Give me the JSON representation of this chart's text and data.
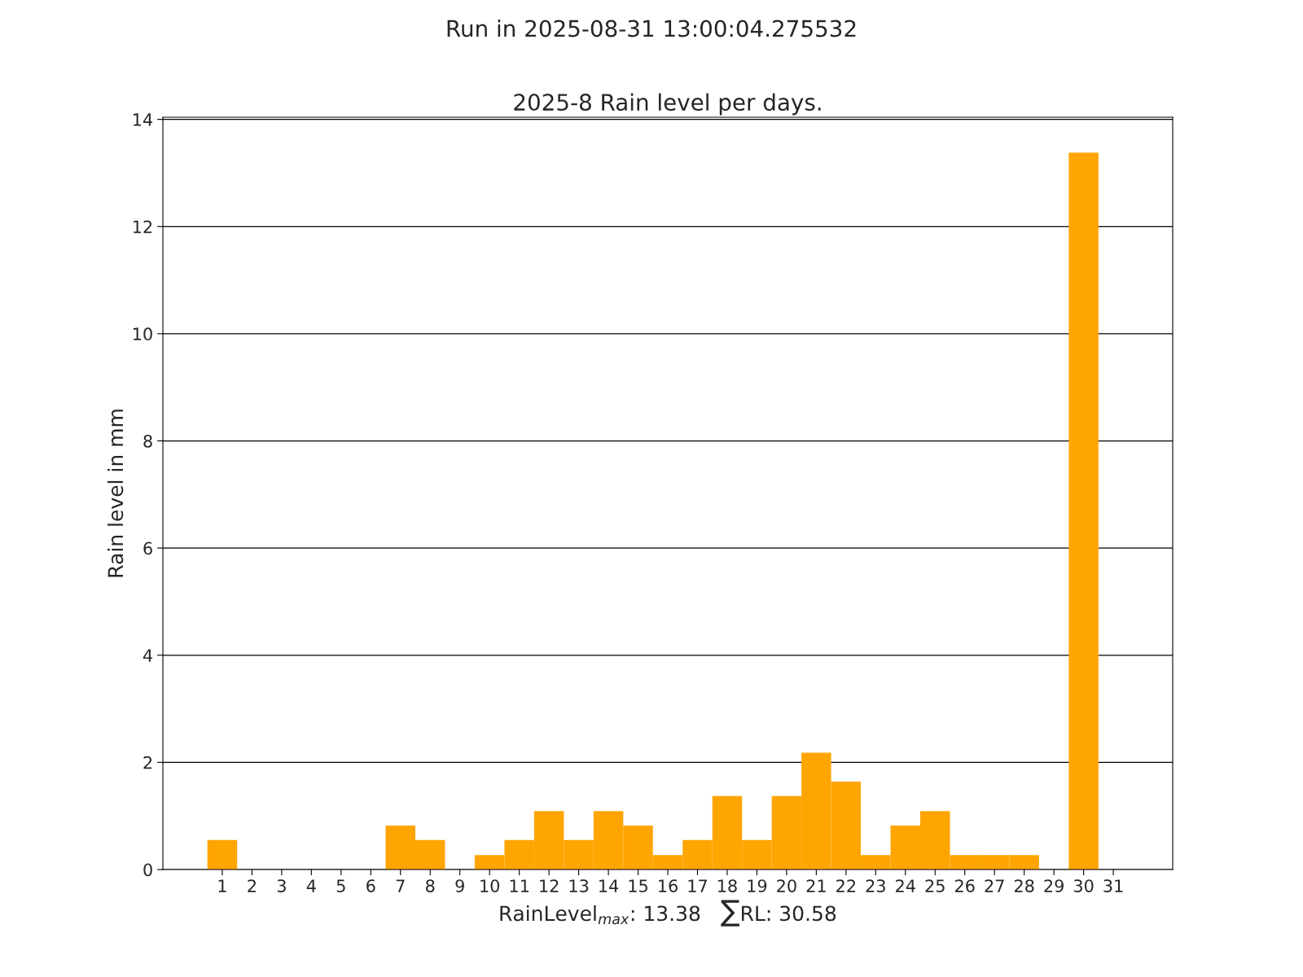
{
  "chart_data": {
    "type": "bar",
    "title": "Run in 2025-08-31 13:00:04.275532",
    "subtitle": "2025-8 Rain level per days.",
    "xlabel": "RainLevel$_{max}$: 13.38   ∑RL: 30.58",
    "ylabel": "Rain level in mm",
    "categories": [
      "1",
      "2",
      "3",
      "4",
      "5",
      "6",
      "7",
      "8",
      "9",
      "10",
      "11",
      "12",
      "13",
      "14",
      "15",
      "16",
      "17",
      "18",
      "19",
      "20",
      "21",
      "22",
      "23",
      "24",
      "25",
      "26",
      "27",
      "28",
      "29",
      "30",
      "31"
    ],
    "values": [
      0.55,
      0,
      0,
      0,
      0,
      0,
      0.82,
      0.55,
      0,
      0.27,
      0.55,
      1.09,
      0.55,
      1.09,
      0.82,
      0.27,
      0.55,
      1.37,
      0.55,
      1.37,
      2.18,
      1.64,
      0.27,
      0.82,
      1.09,
      0.27,
      0.27,
      0.27,
      0,
      13.38,
      0
    ],
    "color": "#ffa500",
    "ylim": [
      0,
      14.04
    ],
    "yticks": [
      0,
      2,
      4,
      6,
      8,
      10,
      12,
      14
    ],
    "grid": "y"
  }
}
